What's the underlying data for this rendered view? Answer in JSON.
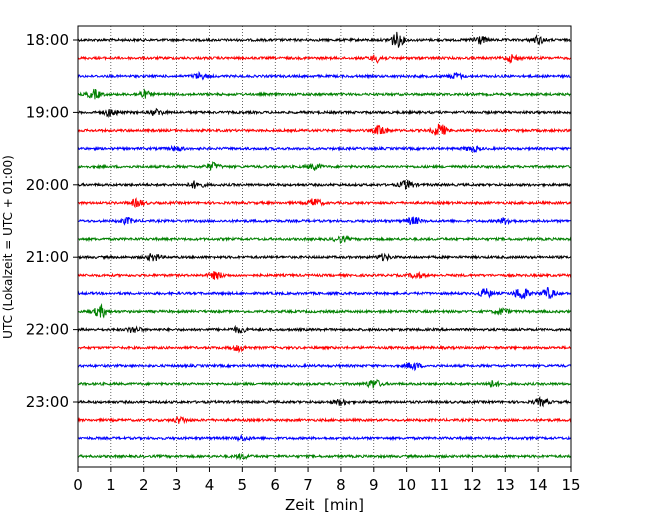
{
  "chart_data": {
    "type": "line",
    "title": "",
    "xlabel": "Zeit  [min]",
    "ylabel": "UTC (Lokalzeit = UTC + 01:00)",
    "xlim": [
      0,
      15
    ],
    "x_ticks": [
      "0",
      "1",
      "2",
      "3",
      "4",
      "5",
      "6",
      "7",
      "8",
      "9",
      "10",
      "11",
      "12",
      "13",
      "14",
      "15"
    ],
    "y_ticks": [
      {
        "label": "18:00",
        "trace_index": 0
      },
      {
        "label": "19:00",
        "trace_index": 4
      },
      {
        "label": "20:00",
        "trace_index": 8
      },
      {
        "label": "21:00",
        "trace_index": 12
      },
      {
        "label": "22:00",
        "trace_index": 16
      },
      {
        "label": "23:00",
        "trace_index": 20
      }
    ],
    "grid": "vertical dotted at each minute",
    "color_cycle": [
      "#000000",
      "#ff0000",
      "#0000ff",
      "#008000"
    ],
    "traces": [
      {
        "start": "18:00",
        "events": [
          {
            "t": 9.7,
            "amp": 1.0
          },
          {
            "t": 12.2,
            "amp": 0.6
          },
          {
            "t": 14.0,
            "amp": 0.5
          }
        ]
      },
      {
        "start": "18:15",
        "events": [
          {
            "t": 9.1,
            "amp": 0.5
          },
          {
            "t": 13.2,
            "amp": 0.5
          }
        ]
      },
      {
        "start": "18:30",
        "events": [
          {
            "t": 3.7,
            "amp": 0.4
          },
          {
            "t": 11.5,
            "amp": 0.4
          }
        ]
      },
      {
        "start": "18:45",
        "events": [
          {
            "t": 0.5,
            "amp": 0.6
          },
          {
            "t": 2.0,
            "amp": 0.5
          }
        ]
      },
      {
        "start": "19:00",
        "events": [
          {
            "t": 1.0,
            "amp": 0.5
          },
          {
            "t": 2.4,
            "amp": 0.4
          }
        ]
      },
      {
        "start": "19:15",
        "events": [
          {
            "t": 9.2,
            "amp": 0.7
          },
          {
            "t": 11.0,
            "amp": 0.9
          }
        ]
      },
      {
        "start": "19:30",
        "events": [
          {
            "t": 3.0,
            "amp": 0.3
          },
          {
            "t": 12.0,
            "amp": 0.4
          }
        ]
      },
      {
        "start": "19:45",
        "events": [
          {
            "t": 4.1,
            "amp": 0.5
          },
          {
            "t": 7.2,
            "amp": 0.4
          }
        ]
      },
      {
        "start": "20:00",
        "events": [
          {
            "t": 3.6,
            "amp": 0.5
          },
          {
            "t": 10.0,
            "amp": 0.6
          }
        ]
      },
      {
        "start": "20:15",
        "events": [
          {
            "t": 1.8,
            "amp": 0.5
          },
          {
            "t": 7.2,
            "amp": 0.6
          }
        ]
      },
      {
        "start": "20:30",
        "events": [
          {
            "t": 1.5,
            "amp": 0.4
          },
          {
            "t": 10.2,
            "amp": 0.5
          },
          {
            "t": 13.0,
            "amp": 0.4
          }
        ]
      },
      {
        "start": "20:45",
        "events": [
          {
            "t": 8.0,
            "amp": 0.4
          }
        ]
      },
      {
        "start": "21:00",
        "events": [
          {
            "t": 2.3,
            "amp": 0.5
          },
          {
            "t": 9.3,
            "amp": 0.4
          }
        ]
      },
      {
        "start": "21:15",
        "events": [
          {
            "t": 4.2,
            "amp": 0.5
          },
          {
            "t": 10.3,
            "amp": 0.4
          }
        ]
      },
      {
        "start": "21:30",
        "events": [
          {
            "t": 12.4,
            "amp": 0.6
          },
          {
            "t": 13.5,
            "amp": 0.9
          },
          {
            "t": 14.3,
            "amp": 0.7
          }
        ]
      },
      {
        "start": "21:45",
        "events": [
          {
            "t": 0.7,
            "amp": 0.8
          },
          {
            "t": 12.9,
            "amp": 0.4
          }
        ]
      },
      {
        "start": "22:00",
        "events": [
          {
            "t": 1.7,
            "amp": 0.4
          },
          {
            "t": 4.9,
            "amp": 0.4
          }
        ]
      },
      {
        "start": "22:15",
        "events": [
          {
            "t": 4.9,
            "amp": 0.4
          }
        ]
      },
      {
        "start": "22:30",
        "events": [
          {
            "t": 10.2,
            "amp": 0.5
          }
        ]
      },
      {
        "start": "22:45",
        "events": [
          {
            "t": 9.0,
            "amp": 0.6
          },
          {
            "t": 12.6,
            "amp": 0.4
          }
        ]
      },
      {
        "start": "23:00",
        "events": [
          {
            "t": 8.0,
            "amp": 0.4
          },
          {
            "t": 14.1,
            "amp": 0.5
          }
        ]
      },
      {
        "start": "23:15",
        "events": [
          {
            "t": 3.1,
            "amp": 0.4
          }
        ]
      },
      {
        "start": "23:30",
        "events": [
          {
            "t": 5.0,
            "amp": 0.3
          }
        ]
      },
      {
        "start": "23:45",
        "events": [
          {
            "t": 5.0,
            "amp": 0.3
          }
        ]
      }
    ]
  }
}
